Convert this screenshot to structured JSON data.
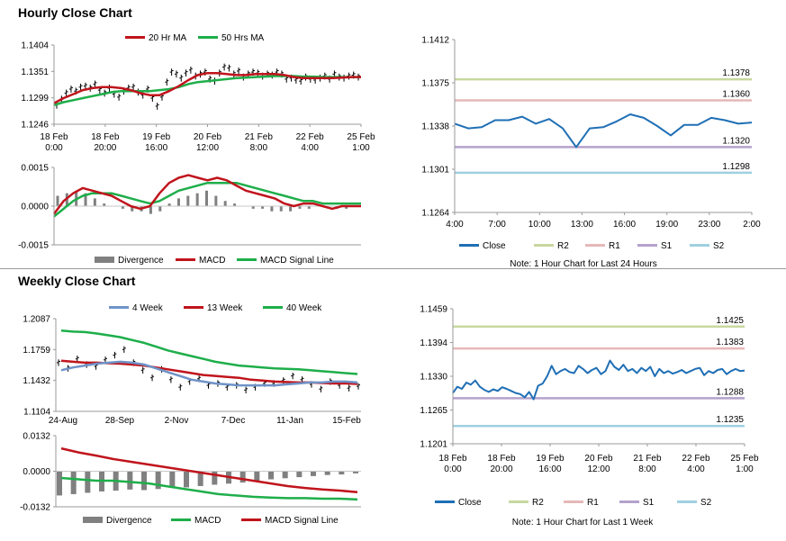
{
  "sections": {
    "hourly_title": "Hourly Close Chart",
    "weekly_title": "Weekly Close Chart"
  },
  "colors": {
    "ma_short": "#c0141c",
    "ma_long": "#1eae4a",
    "close_line": "#1f6fb5",
    "four_week": "#6f93c8",
    "r2": "#c8d8a0",
    "r1": "#e6b8b8",
    "s1": "#b4a2cc",
    "s2": "#9fd0e0",
    "divergence": "#808080",
    "price_bar": "#000000"
  },
  "chart_data": [
    {
      "id": "hourly-price",
      "type": "line",
      "title": "",
      "ylim": [
        1.1246,
        1.1404
      ],
      "yticks": [
        "1.1404",
        "1.1351",
        "1.1299",
        "1.1246"
      ],
      "x_tick_labels": [
        [
          "18 Feb",
          "0:00"
        ],
        [
          "18 Feb",
          "20:00"
        ],
        [
          "19 Feb",
          "16:00"
        ],
        [
          "20 Feb",
          "12:00"
        ],
        [
          "21 Feb",
          "8:00"
        ],
        [
          "22 Feb",
          "4:00"
        ],
        [
          "25 Feb",
          "1:00"
        ]
      ],
      "legend": [
        "20 Hr MA",
        "50 Hrs MA"
      ],
      "ohlc": [
        1.1284,
        1.1296,
        1.1308,
        1.1316,
        1.1312,
        1.132,
        1.1322,
        1.1318,
        1.1326,
        1.1314,
        1.1308,
        1.1318,
        1.1306,
        1.13,
        1.1312,
        1.1318,
        1.132,
        1.131,
        1.1304,
        1.1316,
        1.1298,
        1.1282,
        1.13,
        1.133,
        1.135,
        1.1346,
        1.1338,
        1.1348,
        1.1354,
        1.1342,
        1.1346,
        1.135,
        1.1336,
        1.1332,
        1.1348,
        1.136,
        1.1358,
        1.1346,
        1.1352,
        1.134,
        1.1346,
        1.135,
        1.1348,
        1.1342,
        1.1346,
        1.1344,
        1.135,
        1.1346,
        1.1336,
        1.1338,
        1.1334,
        1.1332,
        1.134,
        1.1336,
        1.1334,
        1.1338,
        1.1342,
        1.1336,
        1.1346,
        1.134,
        1.1338,
        1.1342,
        1.1344,
        1.134
      ],
      "series": [
        {
          "name": "20 Hr MA",
          "values": [
            1.1288,
            1.1298,
            1.1306,
            1.1314,
            1.1318,
            1.132,
            1.132,
            1.1318,
            1.1314,
            1.1308,
            1.1304,
            1.1304,
            1.1312,
            1.1322,
            1.1334,
            1.1344,
            1.1348,
            1.1348,
            1.1346,
            1.1344,
            1.1344,
            1.1346,
            1.1346,
            1.1346,
            1.1344,
            1.134,
            1.1338,
            1.1338,
            1.1338,
            1.1338,
            1.1339,
            1.134,
            1.134
          ]
        },
        {
          "name": "50 Hrs MA",
          "values": [
            1.1284,
            1.129,
            1.1294,
            1.1298,
            1.1302,
            1.1306,
            1.131,
            1.1312,
            1.1312,
            1.1312,
            1.1312,
            1.1314,
            1.1316,
            1.132,
            1.1326,
            1.133,
            1.1332,
            1.1334,
            1.1336,
            1.1338,
            1.1339,
            1.134,
            1.1341,
            1.1342,
            1.1342,
            1.1342,
            1.1341,
            1.1341,
            1.134,
            1.134,
            1.134,
            1.134,
            1.134
          ]
        }
      ]
    },
    {
      "id": "hourly-macd",
      "type": "bar",
      "ylim": [
        -0.0015,
        0.0015
      ],
      "yticks": [
        "0.0015",
        "0.0000",
        "-0.0015"
      ],
      "legend": [
        "Divergence",
        "MACD",
        "MACD Signal Line"
      ],
      "divergence": [
        0.0004,
        0.0005,
        0.0006,
        0.0005,
        0.0003,
        0.0001,
        0.0,
        -0.0001,
        -0.0002,
        -0.0002,
        -0.0003,
        -0.0002,
        0.0001,
        0.0003,
        0.0004,
        0.0005,
        0.0006,
        0.0004,
        0.0002,
        0.0001,
        0.0,
        -0.0001,
        -0.0001,
        -0.0002,
        -0.0002,
        -0.0002,
        -0.0001,
        -0.0001,
        0.0,
        0.0,
        -0.0001,
        -0.0001,
        0.0
      ],
      "series": [
        {
          "name": "MACD",
          "values": [
            -0.0003,
            0.0002,
            0.0005,
            0.0007,
            0.0006,
            0.0005,
            0.0004,
            0.0002,
            0.0,
            -0.0001,
            0.0,
            0.0005,
            0.0009,
            0.0011,
            0.0012,
            0.0011,
            0.001,
            0.0011,
            0.001,
            0.0008,
            0.0006,
            0.0005,
            0.0004,
            0.0003,
            0.0001,
            0.0,
            0.0001,
            0.0001,
            0.0,
            -0.0001,
            0.0,
            0.0,
            0.0
          ]
        },
        {
          "name": "MACD Signal Line",
          "values": [
            -0.0004,
            -0.0001,
            0.0002,
            0.0004,
            0.0005,
            0.0005,
            0.0005,
            0.0004,
            0.0003,
            0.0002,
            0.0001,
            0.0002,
            0.0004,
            0.0006,
            0.0007,
            0.0008,
            0.0009,
            0.0009,
            0.0009,
            0.0009,
            0.0008,
            0.0007,
            0.0006,
            0.0005,
            0.0004,
            0.0003,
            0.0002,
            0.0002,
            0.0001,
            0.0001,
            0.0001,
            0.0001,
            0.0001
          ]
        }
      ]
    },
    {
      "id": "hour24-levels",
      "type": "line",
      "ylim": [
        1.1264,
        1.1412
      ],
      "yticks": [
        "1.1412",
        "1.1375",
        "1.1338",
        "1.1301",
        "1.1264"
      ],
      "x_tick_labels": [
        "4:00",
        "7:00",
        "10:00",
        "13:00",
        "16:00",
        "19:00",
        "23:00",
        "2:00"
      ],
      "levels": [
        {
          "name": "R2",
          "value": 1.1378,
          "label": "1.1378"
        },
        {
          "name": "R1",
          "value": 1.136,
          "label": "1.1360"
        },
        {
          "name": "S1",
          "value": 1.132,
          "label": "1.1320"
        },
        {
          "name": "S2",
          "value": 1.1298,
          "label": "1.1298"
        }
      ],
      "series": [
        {
          "name": "Close",
          "values": [
            1.134,
            1.1336,
            1.1337,
            1.1343,
            1.1343,
            1.1346,
            1.134,
            1.1344,
            1.1336,
            1.132,
            1.1336,
            1.1337,
            1.1342,
            1.1348,
            1.1345,
            1.1338,
            1.133,
            1.1339,
            1.1339,
            1.1345,
            1.1343,
            1.134,
            1.1341
          ]
        }
      ],
      "legend": [
        "Close",
        "R2",
        "R1",
        "S1",
        "S2"
      ],
      "note": "Note: 1 Hour Chart for Last 24 Hours"
    },
    {
      "id": "weekly-price",
      "type": "line",
      "ylim": [
        1.1104,
        1.2087
      ],
      "yticks": [
        "1.2087",
        "1.1759",
        "1.1432",
        "1.1104"
      ],
      "x_tick_labels": [
        "24-Aug",
        "28-Sep",
        "2-Nov",
        "7-Dec",
        "11-Jan",
        "15-Feb"
      ],
      "legend": [
        "4 Week",
        "13 Week",
        "40 Week"
      ],
      "ohlc": [
        1.162,
        1.156,
        1.166,
        1.16,
        1.158,
        1.165,
        1.17,
        1.176,
        1.162,
        1.154,
        1.146,
        1.155,
        1.144,
        1.136,
        1.142,
        1.145,
        1.138,
        1.14,
        1.136,
        1.138,
        1.133,
        1.136,
        1.14,
        1.14,
        1.143,
        1.148,
        1.144,
        1.139,
        1.134,
        1.142,
        1.138,
        1.135,
        1.137
      ],
      "series": [
        {
          "name": "4 Week",
          "values": [
            1.154,
            1.157,
            1.159,
            1.161,
            1.162,
            1.163,
            1.162,
            1.16,
            1.156,
            1.152,
            1.148,
            1.144,
            1.142,
            1.14,
            1.139,
            1.138,
            1.138,
            1.138,
            1.138,
            1.139,
            1.14,
            1.141,
            1.141,
            1.142,
            1.142,
            1.141
          ]
        },
        {
          "name": "13 Week",
          "values": [
            1.164,
            1.163,
            1.162,
            1.162,
            1.1615,
            1.161,
            1.16,
            1.159,
            1.157,
            1.155,
            1.153,
            1.151,
            1.149,
            1.148,
            1.147,
            1.146,
            1.144,
            1.143,
            1.142,
            1.1415,
            1.141,
            1.141,
            1.1405,
            1.14,
            1.14,
            1.1395
          ]
        },
        {
          "name": "40 Week",
          "values": [
            1.196,
            1.195,
            1.1945,
            1.193,
            1.191,
            1.189,
            1.186,
            1.183,
            1.179,
            1.175,
            1.172,
            1.169,
            1.166,
            1.163,
            1.161,
            1.159,
            1.158,
            1.157,
            1.156,
            1.1555,
            1.155,
            1.154,
            1.153,
            1.152,
            1.151,
            1.15
          ]
        }
      ]
    },
    {
      "id": "weekly-macd",
      "type": "bar",
      "ylim": [
        -0.0132,
        0.0132
      ],
      "yticks": [
        "0.0132",
        "0.0000",
        "-0.0132"
      ],
      "legend": [
        "Divergence",
        "MACD",
        "MACD Signal Line"
      ],
      "divergence": [
        -0.009,
        -0.0085,
        -0.008,
        -0.0075,
        -0.0072,
        -0.0068,
        -0.007,
        -0.0066,
        -0.0062,
        -0.006,
        -0.0055,
        -0.005,
        -0.0046,
        -0.0042,
        -0.0038,
        -0.003,
        -0.0026,
        -0.0022,
        -0.0018,
        -0.0014,
        -0.0012,
        -0.0008
      ],
      "series": [
        {
          "name": "MACD",
          "values": [
            -0.0025,
            -0.003,
            -0.0035,
            -0.0035,
            -0.004,
            -0.0045,
            -0.0055,
            -0.0065,
            -0.0075,
            -0.0085,
            -0.009,
            -0.0095,
            -0.0098,
            -0.01,
            -0.01,
            -0.0102,
            -0.0102,
            -0.0105
          ]
        },
        {
          "name": "MACD Signal Line",
          "values": [
            0.0085,
            0.007,
            0.0058,
            0.0045,
            0.0035,
            0.0025,
            0.0015,
            0.0005,
            -0.0005,
            -0.0015,
            -0.0025,
            -0.0035,
            -0.0045,
            -0.0055,
            -0.0062,
            -0.0068,
            -0.0072,
            -0.0078
          ]
        }
      ]
    },
    {
      "id": "week-levels",
      "type": "line",
      "ylim": [
        1.1201,
        1.1459
      ],
      "yticks": [
        "1.1459",
        "1.1394",
        "1.1330",
        "1.1265",
        "1.1201"
      ],
      "x_tick_labels": [
        [
          "18 Feb",
          "0:00"
        ],
        [
          "18 Feb",
          "20:00"
        ],
        [
          "19 Feb",
          "16:00"
        ],
        [
          "20 Feb",
          "12:00"
        ],
        [
          "21 Feb",
          "8:00"
        ],
        [
          "22 Feb",
          "4:00"
        ],
        [
          "25 Feb",
          "1:00"
        ]
      ],
      "levels": [
        {
          "name": "R2",
          "value": 1.1425,
          "label": "1.1425"
        },
        {
          "name": "R1",
          "value": 1.1383,
          "label": "1.1383"
        },
        {
          "name": "S1",
          "value": 1.1288,
          "label": "1.1288"
        },
        {
          "name": "S2",
          "value": 1.1235,
          "label": "1.1235"
        }
      ],
      "series": [
        {
          "name": "Close",
          "values": [
            1.1298,
            1.131,
            1.1306,
            1.1318,
            1.1314,
            1.1322,
            1.131,
            1.1304,
            1.13,
            1.1305,
            1.1302,
            1.1309,
            1.1306,
            1.1302,
            1.1298,
            1.1296,
            1.129,
            1.13,
            1.1286,
            1.1312,
            1.1316,
            1.133,
            1.135,
            1.1334,
            1.134,
            1.1344,
            1.1338,
            1.1336,
            1.135,
            1.1344,
            1.1336,
            1.1342,
            1.1346,
            1.1334,
            1.134,
            1.136,
            1.1348,
            1.1342,
            1.1352,
            1.134,
            1.1344,
            1.1336,
            1.1346,
            1.134,
            1.1348,
            1.133,
            1.1344,
            1.1336,
            1.134,
            1.1335,
            1.1338,
            1.1342,
            1.1336,
            1.134,
            1.1344,
            1.1346,
            1.1332,
            1.134,
            1.1336,
            1.1342,
            1.1344,
            1.1334,
            1.134,
            1.1344,
            1.134,
            1.1341
          ]
        }
      ],
      "legend": [
        "Close",
        "R2",
        "R1",
        "S1",
        "S2"
      ],
      "note": "Note: 1 Hour Chart for Last 1 Week"
    }
  ]
}
